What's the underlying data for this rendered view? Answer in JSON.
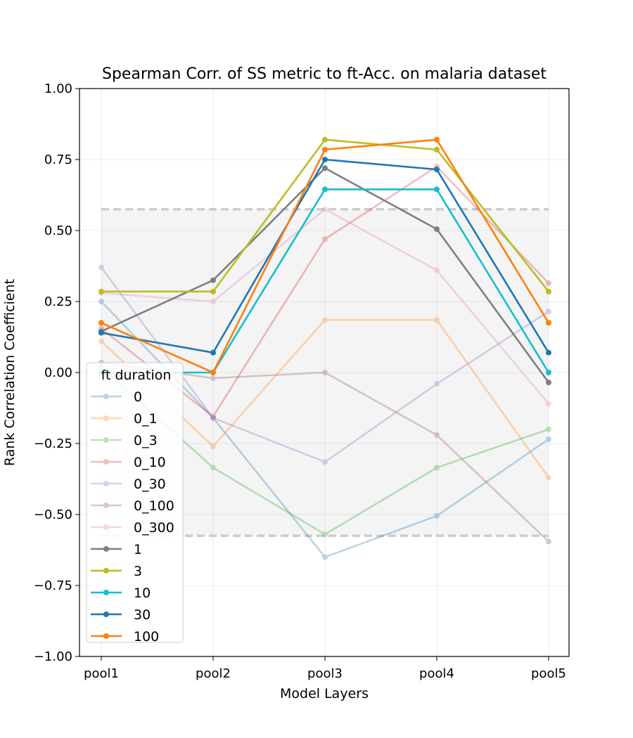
{
  "chart_data": {
    "type": "line",
    "title": "Spearman Corr. of SS metric to ft-Acc. on malaria dataset",
    "xlabel": "Model Layers",
    "ylabel": "Rank Correlation Coefficient",
    "categories": [
      "pool1",
      "pool2",
      "pool3",
      "pool4",
      "pool5"
    ],
    "ylim": [
      -1.0,
      1.0
    ],
    "yticks": [
      "−1.00",
      "−0.75",
      "−0.50",
      "−0.25",
      "0.00",
      "0.25",
      "0.50",
      "0.75",
      "1.00"
    ],
    "ytick_values": [
      -1.0,
      -0.75,
      -0.5,
      -0.25,
      0.0,
      0.25,
      0.5,
      0.75,
      1.0
    ],
    "grid": true,
    "significance_band": [
      -0.575,
      0.575
    ],
    "legend": {
      "title": "ft duration",
      "placement": "lower-left"
    },
    "series": [
      {
        "name": "0",
        "color": "#1f77b4",
        "faded": true,
        "values": [
          0.25,
          -0.16,
          -0.65,
          -0.505,
          -0.235
        ]
      },
      {
        "name": "0_1",
        "color": "#ff7f0e",
        "faded": true,
        "values": [
          0.11,
          -0.26,
          0.185,
          0.185,
          -0.37
        ]
      },
      {
        "name": "0_3",
        "color": "#2ca02c",
        "faded": true,
        "values": [
          0.02,
          -0.335,
          -0.57,
          -0.335,
          -0.2
        ]
      },
      {
        "name": "0_10",
        "color": "#d62728",
        "faded": true,
        "values": [
          0.155,
          -0.155,
          0.47,
          0.725,
          0.315
        ]
      },
      {
        "name": "0_30",
        "color": "#9467bd",
        "faded": true,
        "values": [
          0.37,
          -0.16,
          -0.315,
          -0.04,
          0.215
        ]
      },
      {
        "name": "0_100",
        "color": "#8c564b",
        "faded": true,
        "values": [
          0.035,
          -0.02,
          0.0,
          -0.22,
          -0.595
        ]
      },
      {
        "name": "0_300",
        "color": "#e377c2",
        "faded": true,
        "values": [
          0.28,
          0.25,
          0.575,
          0.36,
          -0.11
        ]
      },
      {
        "name": "1",
        "color": "#7f7f7f",
        "faded": false,
        "values": [
          0.145,
          0.325,
          0.72,
          0.505,
          -0.035
        ]
      },
      {
        "name": "3",
        "color": "#bcbd22",
        "faded": false,
        "values": [
          0.285,
          0.285,
          0.82,
          0.785,
          0.285
        ]
      },
      {
        "name": "10",
        "color": "#17becf",
        "faded": false,
        "values": [
          0.0,
          0.0,
          0.645,
          0.645,
          0.0
        ]
      },
      {
        "name": "30",
        "color": "#1f77b4",
        "faded": false,
        "values": [
          0.14,
          0.07,
          0.75,
          0.715,
          0.07
        ]
      },
      {
        "name": "100",
        "color": "#ff7f0e",
        "faded": false,
        "values": [
          0.175,
          0.0,
          0.785,
          0.82,
          0.175
        ]
      }
    ]
  }
}
